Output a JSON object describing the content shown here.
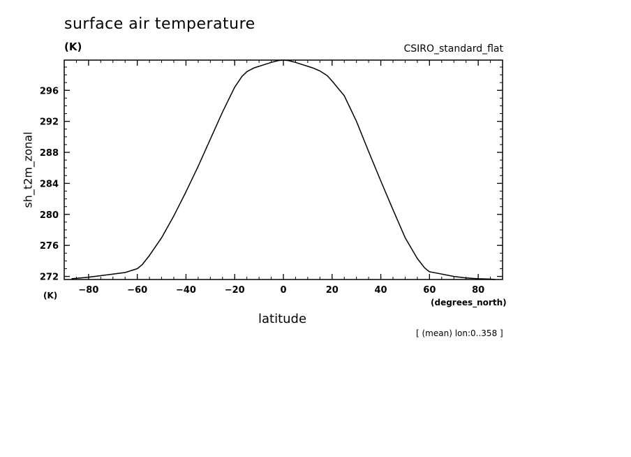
{
  "title": "surface air temperature",
  "units": "(K)",
  "model": "CSIRO_standard_flat",
  "footnote": "[ (mean) lon:0..358 ]",
  "chart_data": {
    "type": "line",
    "title": "surface air temperature",
    "xlabel": "latitude",
    "x_unit": "(degrees_north)",
    "ylabel": "sh_t2m_zonal",
    "y_unit": "(K)",
    "xlim": [
      -90,
      90
    ],
    "ylim": [
      271.6,
      299.9
    ],
    "x_ticks": [
      -80,
      -60,
      -40,
      -20,
      0,
      20,
      40,
      60,
      80
    ],
    "y_ticks": [
      272,
      276,
      280,
      284,
      288,
      292,
      296
    ],
    "grid": false,
    "series": [
      {
        "name": "",
        "x": [
          -87,
          -80,
          -75,
          -70,
          -65,
          -60,
          -58,
          -55,
          -50,
          -45,
          -40,
          -35,
          -30,
          -25,
          -20,
          -17,
          -15,
          -12,
          -10,
          -8,
          -5,
          -2,
          0,
          2,
          5,
          8,
          10,
          12,
          15,
          18,
          20,
          25,
          30,
          35,
          40,
          45,
          50,
          55,
          58,
          60,
          65,
          70,
          75,
          80,
          85,
          87
        ],
        "y": [
          271.7,
          271.9,
          272.1,
          272.3,
          272.5,
          273.0,
          273.5,
          274.7,
          277.0,
          279.8,
          282.9,
          286.2,
          289.7,
          293.2,
          296.4,
          297.8,
          298.4,
          298.9,
          299.1,
          299.3,
          299.6,
          299.85,
          299.9,
          299.85,
          299.6,
          299.3,
          299.1,
          298.9,
          298.5,
          297.9,
          297.2,
          295.3,
          292.0,
          288.1,
          284.3,
          280.6,
          277.0,
          274.3,
          273.1,
          272.6,
          272.3,
          272.0,
          271.8,
          271.7,
          271.65,
          271.6
        ]
      }
    ]
  }
}
